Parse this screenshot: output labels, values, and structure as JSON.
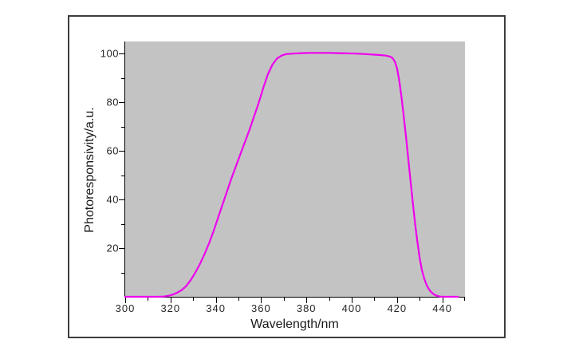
{
  "figure": {
    "background_color": "#ffffff",
    "frame_border_color": "#3d3d3d"
  },
  "chart_data": {
    "type": "line",
    "title": "",
    "xlabel": "Wavelength/nm",
    "ylabel": "Photoresponsivity/a.u.",
    "xlim": [
      300,
      450
    ],
    "ylim": [
      0,
      105
    ],
    "grid": false,
    "legend": "none",
    "plot_background": "#c3c3c3",
    "axis_color": "#000000",
    "tick_label_color": "#262626",
    "x_major_ticks": [
      300,
      320,
      340,
      360,
      380,
      400,
      420,
      440
    ],
    "x_minor_ticks": [
      310,
      330,
      350,
      370,
      390,
      410,
      430,
      450
    ],
    "y_major_ticks": [
      20,
      40,
      60,
      80,
      100
    ],
    "y_minor_ticks": [
      10,
      30,
      50,
      70,
      90
    ],
    "series": [
      {
        "name": "photoresponsivity",
        "color": "#ee00ee",
        "line_width": 2.2,
        "points": [
          [
            300,
            0
          ],
          [
            305,
            0
          ],
          [
            310,
            0
          ],
          [
            314,
            0
          ],
          [
            317,
            0.1
          ],
          [
            319,
            0.4
          ],
          [
            321,
            0.9
          ],
          [
            323,
            1.7
          ],
          [
            325,
            2.8
          ],
          [
            327,
            4.5
          ],
          [
            329,
            7
          ],
          [
            331,
            10
          ],
          [
            333,
            13.5
          ],
          [
            335,
            17.5
          ],
          [
            337,
            22
          ],
          [
            339,
            27
          ],
          [
            341,
            32.5
          ],
          [
            343,
            38
          ],
          [
            345,
            43.5
          ],
          [
            347,
            49
          ],
          [
            349,
            54
          ],
          [
            351,
            59
          ],
          [
            353,
            64
          ],
          [
            355,
            69
          ],
          [
            357,
            74.5
          ],
          [
            359,
            80
          ],
          [
            361,
            86
          ],
          [
            363,
            91.5
          ],
          [
            365,
            95.5
          ],
          [
            367,
            98
          ],
          [
            369,
            99.2
          ],
          [
            371,
            99.8
          ],
          [
            374,
            100
          ],
          [
            378,
            100.2
          ],
          [
            382,
            100.3
          ],
          [
            386,
            100.3
          ],
          [
            390,
            100.3
          ],
          [
            394,
            100.2
          ],
          [
            398,
            100.1
          ],
          [
            402,
            100
          ],
          [
            406,
            99.8
          ],
          [
            410,
            99.6
          ],
          [
            413,
            99.4
          ],
          [
            415,
            99.2
          ],
          [
            417,
            98.8
          ],
          [
            418,
            98.2
          ],
          [
            419,
            96.8
          ],
          [
            420,
            94
          ],
          [
            421,
            89
          ],
          [
            422,
            82
          ],
          [
            423,
            74
          ],
          [
            424,
            65.5
          ],
          [
            425,
            56.5
          ],
          [
            426,
            47.5
          ],
          [
            427,
            38.5
          ],
          [
            428,
            30
          ],
          [
            429,
            22.5
          ],
          [
            430,
            16
          ],
          [
            431,
            11
          ],
          [
            432,
            7.5
          ],
          [
            433,
            5
          ],
          [
            434,
            3.2
          ],
          [
            435,
            2
          ],
          [
            436,
            1.2
          ],
          [
            437,
            0.6
          ],
          [
            438,
            0.3
          ],
          [
            439,
            0.1
          ],
          [
            440,
            0
          ],
          [
            443,
            0
          ],
          [
            447,
            0
          ]
        ]
      }
    ]
  }
}
